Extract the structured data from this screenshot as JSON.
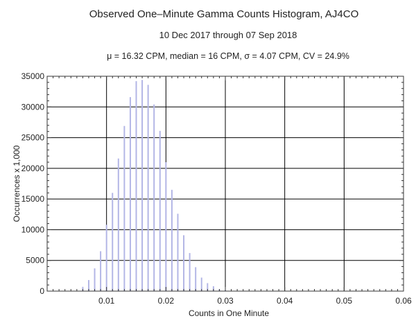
{
  "chart_data": {
    "type": "bar",
    "title": "Observed One–Minute Gamma Counts Histogram, AJ4CO",
    "subtitle": "10 Dec 2017 through 07 Sep 2018",
    "stats_line": "μ = 16.32 CPM,   median = 16 CPM,   σ = 4.07 CPM,   CV = 24.9%",
    "xlabel": "Counts in One Minute",
    "ylabel": "Occurrences x 1,000",
    "xlim": [
      0,
      0.06
    ],
    "ylim": [
      0,
      35000
    ],
    "x_ticks": [
      0.01,
      0.02,
      0.03,
      0.04,
      0.05,
      0.06
    ],
    "x_tick_labels": [
      "0.01",
      "0.02",
      "0.03",
      "0.04",
      "0.05",
      "0.06"
    ],
    "y_ticks": [
      0,
      5000,
      10000,
      15000,
      20000,
      25000,
      30000,
      35000
    ],
    "y_tick_labels": [
      "0",
      "5000",
      "10000",
      "15000",
      "20000",
      "25000",
      "30000",
      "35000"
    ],
    "grid": true,
    "bar_color": "#b3b6e6",
    "series": [
      {
        "x": [
          0.006,
          0.007,
          0.008,
          0.009,
          0.01,
          0.011,
          0.012,
          0.013,
          0.014,
          0.015,
          0.016,
          0.017,
          0.018,
          0.019,
          0.02,
          0.021,
          0.022,
          0.023,
          0.024,
          0.025,
          0.026,
          0.027,
          0.028,
          0.029,
          0.03
        ],
        "values": [
          700,
          1800,
          3700,
          6500,
          10800,
          16000,
          21600,
          26900,
          31600,
          34200,
          34400,
          33600,
          30400,
          26100,
          21000,
          16500,
          12600,
          9100,
          6200,
          3900,
          2200,
          1300,
          800,
          300,
          150
        ]
      }
    ]
  }
}
